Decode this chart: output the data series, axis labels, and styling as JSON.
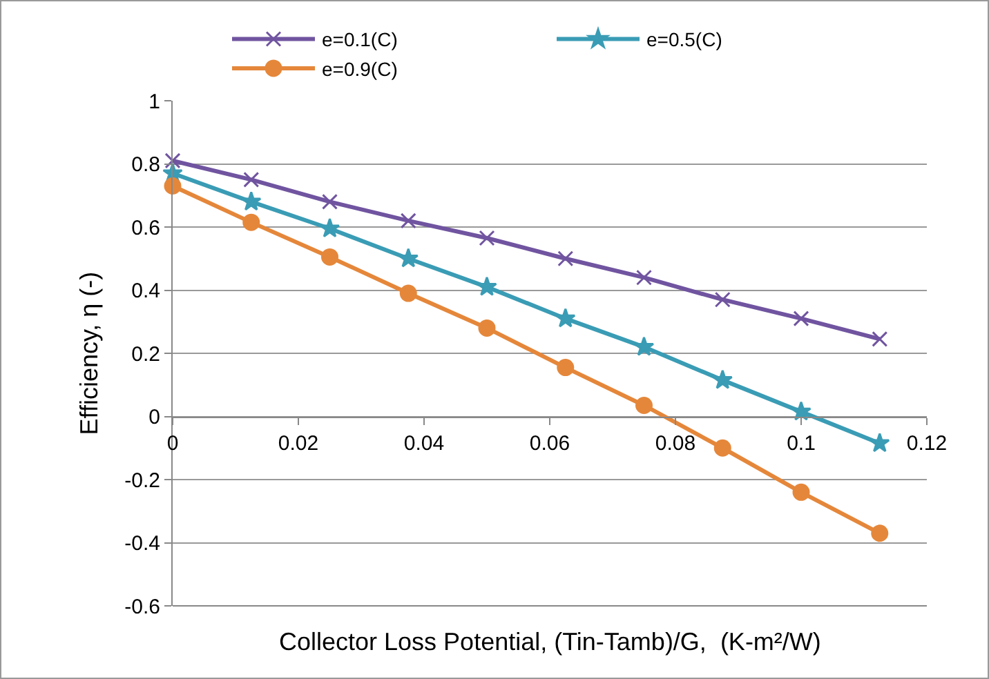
{
  "chart_data": {
    "type": "line",
    "xlabel": "Collector Loss Potential, (Tin-Tamb)/G,  (K-m²/W)",
    "ylabel": "Efficiency, η (-)",
    "x": [
      0,
      0.0125,
      0.025,
      0.0375,
      0.05,
      0.0625,
      0.075,
      0.0875,
      0.1,
      0.1125
    ],
    "series": [
      {
        "name": "e=0.1(C)",
        "color": "#7054a0",
        "marker": "cross",
        "values": [
          0.81,
          0.75,
          0.68,
          0.62,
          0.565,
          0.5,
          0.44,
          0.37,
          0.31,
          0.245
        ]
      },
      {
        "name": "e=0.5(C)",
        "color": "#3a9cb5",
        "marker": "star",
        "values": [
          0.77,
          0.68,
          0.595,
          0.5,
          0.41,
          0.31,
          0.22,
          0.115,
          0.015,
          -0.085
        ]
      },
      {
        "name": "e=0.9(C)",
        "color": "#e5873a",
        "marker": "circle",
        "values": [
          0.73,
          0.615,
          0.505,
          0.39,
          0.28,
          0.155,
          0.035,
          -0.1,
          -0.24,
          -0.37
        ]
      }
    ],
    "xlim": [
      0,
      0.12
    ],
    "xticks": [
      0,
      0.02,
      0.04,
      0.06,
      0.08,
      0.1,
      0.12
    ],
    "ylim": [
      -0.6,
      1
    ],
    "yticks": [
      -0.6,
      -0.4,
      -0.2,
      0,
      0.2,
      0.4,
      0.6,
      0.8,
      1
    ],
    "grid": "y",
    "legend": "top",
    "line_style": "solid"
  }
}
